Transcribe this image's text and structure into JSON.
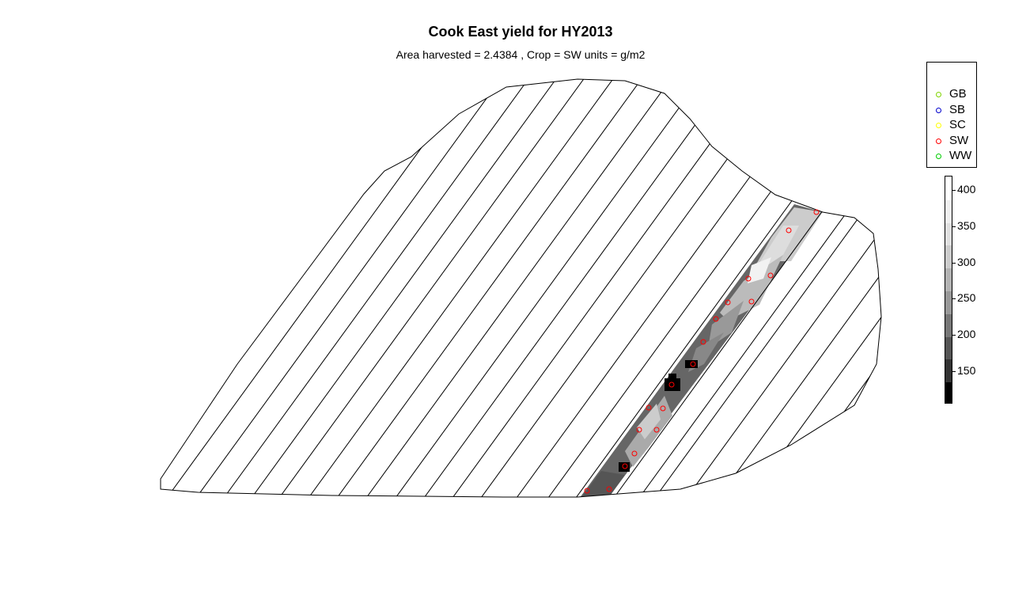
{
  "title": "Cook East yield for HY2013",
  "subtitle": "Area harvested =  2.4384 , Crop =  SW  units = g/m2",
  "legend": {
    "items": [
      {
        "label": "GB",
        "color": "#7fd400"
      },
      {
        "label": "SB",
        "color": "#0000cc"
      },
      {
        "label": "SC",
        "color": "#ffff00"
      },
      {
        "label": "SW",
        "color": "#ff0000"
      },
      {
        "label": "WW",
        "color": "#00cc00"
      }
    ]
  },
  "colorbar": {
    "ticks": [
      "400",
      "350",
      "300",
      "250",
      "200",
      "150"
    ],
    "tick_values": [
      400,
      350,
      300,
      250,
      200,
      150
    ],
    "range": [
      105,
      420
    ],
    "palette": [
      "#000000",
      "#333333",
      "#555555",
      "#777777",
      "#999999",
      "#b3b3b3",
      "#cccccc",
      "#e0e0e0",
      "#f0f0f0",
      "#ffffff"
    ]
  },
  "map": {
    "boundary_color": "#000000",
    "strip_fill_gray": "#666666",
    "sample_color": "#ff0000"
  }
}
